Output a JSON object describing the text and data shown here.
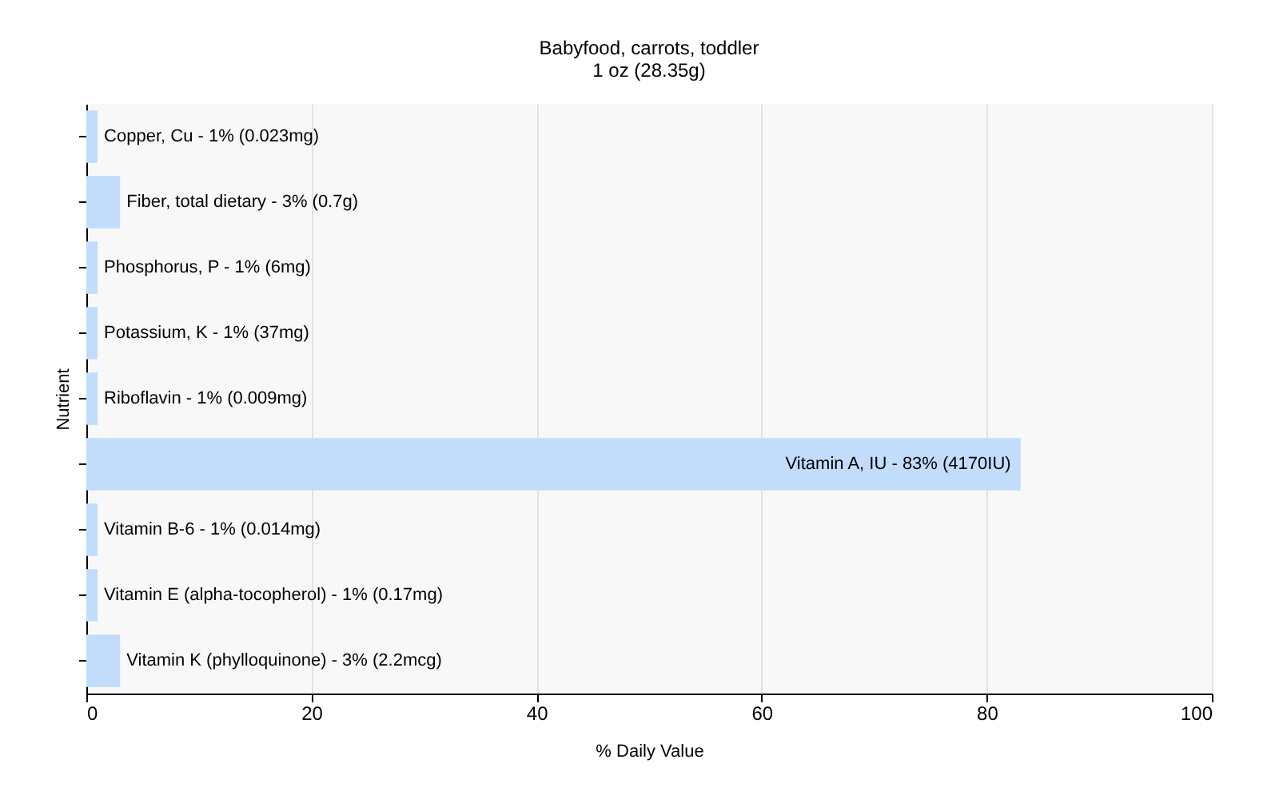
{
  "chart_data": {
    "type": "bar",
    "orientation": "horizontal",
    "title": "Babyfood, carrots, toddler",
    "subtitle": "1 oz (28.35g)",
    "xlabel": "% Daily Value",
    "ylabel": "Nutrient",
    "categories": [
      "Copper, Cu - 1% (0.023mg)",
      "Fiber, total dietary - 3% (0.7g)",
      "Phosphorus, P - 1% (6mg)",
      "Potassium, K - 1% (37mg)",
      "Riboflavin - 1% (0.009mg)",
      "Vitamin A, IU - 83% (4170IU)",
      "Vitamin B-6 - 1% (0.014mg)",
      "Vitamin E (alpha-tocopherol) - 1% (0.17mg)",
      "Vitamin K (phylloquinone) - 3% (2.2mcg)"
    ],
    "values": [
      1,
      3,
      1,
      1,
      1,
      83,
      1,
      1,
      3
    ],
    "color": "#c2dcfb",
    "xlim": [
      0,
      100
    ],
    "xticks": [
      0,
      20,
      40,
      60,
      80,
      100
    ],
    "grid": "x",
    "tick_labels": "x"
  }
}
